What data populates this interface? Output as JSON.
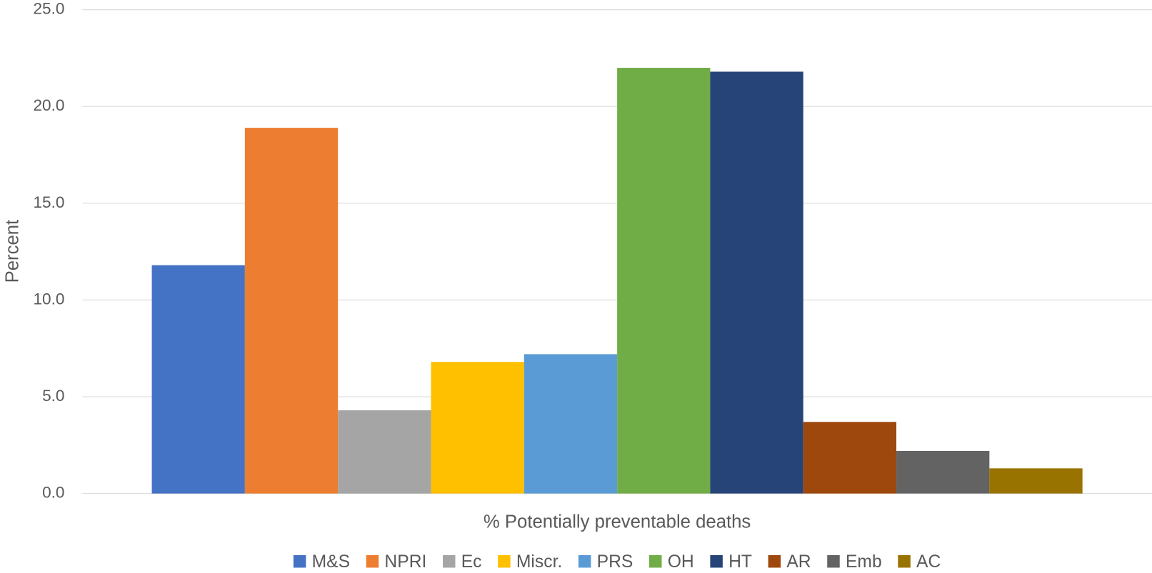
{
  "chart_data": {
    "type": "bar",
    "x_label": "% Potentially preventable deaths",
    "y_label": "Percent",
    "categories": [
      "% Potentially preventable deaths"
    ],
    "series": [
      {
        "name": "M&S",
        "color": "#4472c4",
        "values": [
          11.8
        ]
      },
      {
        "name": "NPRI",
        "color": "#ed7d31",
        "values": [
          18.9
        ]
      },
      {
        "name": "Ec",
        "color": "#a5a5a5",
        "values": [
          4.3
        ]
      },
      {
        "name": "Miscr.",
        "color": "#ffc000",
        "values": [
          6.8
        ]
      },
      {
        "name": "PRS",
        "color": "#5b9bd5",
        "values": [
          7.2
        ]
      },
      {
        "name": "OH",
        "color": "#70ad47",
        "values": [
          22.0
        ]
      },
      {
        "name": "HT",
        "color": "#264478",
        "values": [
          21.8
        ]
      },
      {
        "name": "AR",
        "color": "#9e480e",
        "values": [
          3.7
        ]
      },
      {
        "name": "Emb",
        "color": "#636363",
        "values": [
          2.2
        ]
      },
      {
        "name": "AC",
        "color": "#997300",
        "values": [
          1.3
        ]
      }
    ],
    "ylim": [
      0,
      25
    ],
    "yticks": [
      {
        "value": 0,
        "label": "0.0"
      },
      {
        "value": 5,
        "label": "5.0"
      },
      {
        "value": 10,
        "label": "10.0"
      },
      {
        "value": 15,
        "label": "15.0"
      },
      {
        "value": 20,
        "label": "20.0"
      },
      {
        "value": 25,
        "label": "25.0"
      }
    ],
    "grid": true,
    "legend": "bottom"
  }
}
